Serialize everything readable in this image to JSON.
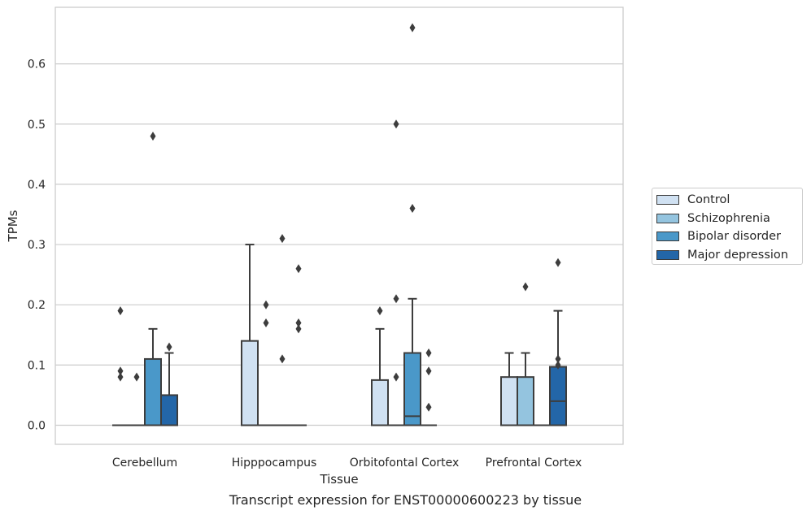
{
  "chart_data": {
    "type": "box",
    "caption": "Transcript expression for ENST00000600223 by tissue",
    "xlabel": "Tissue",
    "ylabel": "TPMs",
    "ylim": [
      -0.033,
      0.695
    ],
    "yticks": [
      0.0,
      0.1,
      0.2,
      0.3,
      0.4,
      0.5,
      0.6
    ],
    "ytick_labels": [
      "0.0",
      "0.1",
      "0.2",
      "0.3",
      "0.4",
      "0.5",
      "0.6"
    ],
    "grid": true,
    "legend_position": "outside-right",
    "categories": [
      "Cerebellum",
      "Hipppocampus",
      "Orbitofontal Cortex",
      "Prefrontal Cortex"
    ],
    "series": [
      {
        "name": "Control",
        "color": "#d0e1f2",
        "boxes": [
          {
            "q1": 0,
            "median": 0,
            "q3": 0,
            "whisker_low": 0,
            "whisker_high": 0,
            "outliers": [
              0.08,
              0.09,
              0.19
            ]
          },
          {
            "q1": 0,
            "median": 0,
            "q3": 0.14,
            "whisker_low": 0,
            "whisker_high": 0.3,
            "outliers": []
          },
          {
            "q1": 0,
            "median": 0,
            "q3": 0.075,
            "whisker_low": 0,
            "whisker_high": 0.16,
            "outliers": [
              0.19
            ]
          },
          {
            "q1": 0,
            "median": 0,
            "q3": 0.08,
            "whisker_low": 0,
            "whisker_high": 0.12,
            "outliers": []
          }
        ]
      },
      {
        "name": "Schizophrenia",
        "color": "#94c4df",
        "boxes": [
          {
            "q1": 0,
            "median": 0,
            "q3": 0,
            "whisker_low": 0,
            "whisker_high": 0,
            "outliers": [
              0.08
            ]
          },
          {
            "q1": 0,
            "median": 0,
            "q3": 0,
            "whisker_low": 0,
            "whisker_high": 0,
            "outliers": [
              0.17,
              0.2
            ]
          },
          {
            "q1": 0,
            "median": 0,
            "q3": 0,
            "whisker_low": 0,
            "whisker_high": 0,
            "outliers": [
              0.08,
              0.21,
              0.5
            ]
          },
          {
            "q1": 0,
            "median": 0,
            "q3": 0.08,
            "whisker_low": 0,
            "whisker_high": 0.12,
            "outliers": [
              0.23
            ]
          }
        ]
      },
      {
        "name": "Bipolar disorder",
        "color": "#4a98c9",
        "boxes": [
          {
            "q1": 0,
            "median": 0,
            "q3": 0.11,
            "whisker_low": 0,
            "whisker_high": 0.16,
            "outliers": [
              0.48
            ]
          },
          {
            "q1": 0,
            "median": 0,
            "q3": 0,
            "whisker_low": 0,
            "whisker_high": 0,
            "outliers": [
              0.11,
              0.31
            ]
          },
          {
            "q1": 0,
            "median": 0.015,
            "q3": 0.12,
            "whisker_low": 0,
            "whisker_high": 0.21,
            "outliers": [
              0.36,
              0.66
            ]
          },
          {
            "q1": 0,
            "median": 0,
            "q3": 0,
            "whisker_low": 0,
            "whisker_high": 0,
            "outliers": []
          }
        ]
      },
      {
        "name": "Major depression",
        "color": "#2366a8",
        "boxes": [
          {
            "q1": 0,
            "median": 0,
            "q3": 0.05,
            "whisker_low": 0,
            "whisker_high": 0.12,
            "outliers": [
              0.13
            ]
          },
          {
            "q1": 0,
            "median": 0,
            "q3": 0,
            "whisker_low": 0,
            "whisker_high": 0,
            "outliers": [
              0.16,
              0.17,
              0.26
            ]
          },
          {
            "q1": 0,
            "median": 0,
            "q3": 0,
            "whisker_low": 0,
            "whisker_high": 0,
            "outliers": [
              0.03,
              0.09,
              0.12
            ]
          },
          {
            "q1": 0,
            "median": 0.04,
            "q3": 0.097,
            "whisker_low": 0,
            "whisker_high": 0.19,
            "outliers": [
              0.1,
              0.11,
              0.27
            ]
          }
        ]
      }
    ]
  }
}
